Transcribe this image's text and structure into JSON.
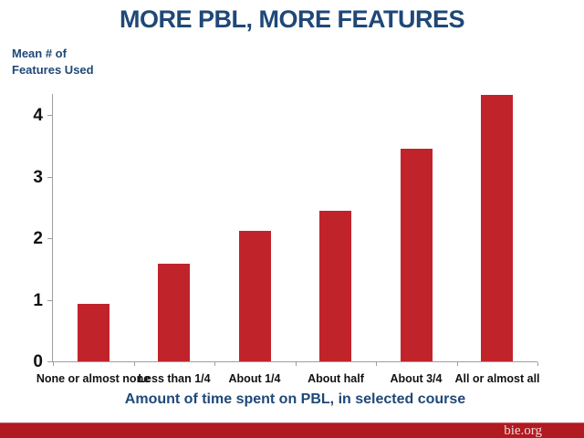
{
  "header": {
    "title": "MORE PBL, MORE FEATURES"
  },
  "colors": {
    "title_blue": "#1F4878",
    "bar_red": "#C1232B",
    "axis_gray": "#9E9E9E",
    "tick_text_black": "#111111",
    "footer_red": "#B11A20",
    "footer_text_pink": "#F0DBDC"
  },
  "chart_data": {
    "type": "bar",
    "title": "MORE PBL, MORE FEATURES",
    "categories": [
      "None or almost none",
      "Less than 1/4",
      "About 1/4",
      "About half",
      "About 3/4",
      "All or almost all"
    ],
    "values": [
      0.93,
      1.58,
      2.12,
      2.45,
      3.45,
      4.32
    ],
    "xlabel": "Amount of time spent on PBL, in selected course",
    "ylabel": "Mean # of Features Used",
    "ylabel_lines": [
      "Mean # of",
      "Features Used"
    ],
    "yticks": [
      0,
      1,
      2,
      3,
      4
    ],
    "ylim": [
      0,
      4.34
    ],
    "grid": false,
    "legend": "none",
    "bar_color": "#C1232B"
  },
  "footer": {
    "site": "bie.org"
  }
}
